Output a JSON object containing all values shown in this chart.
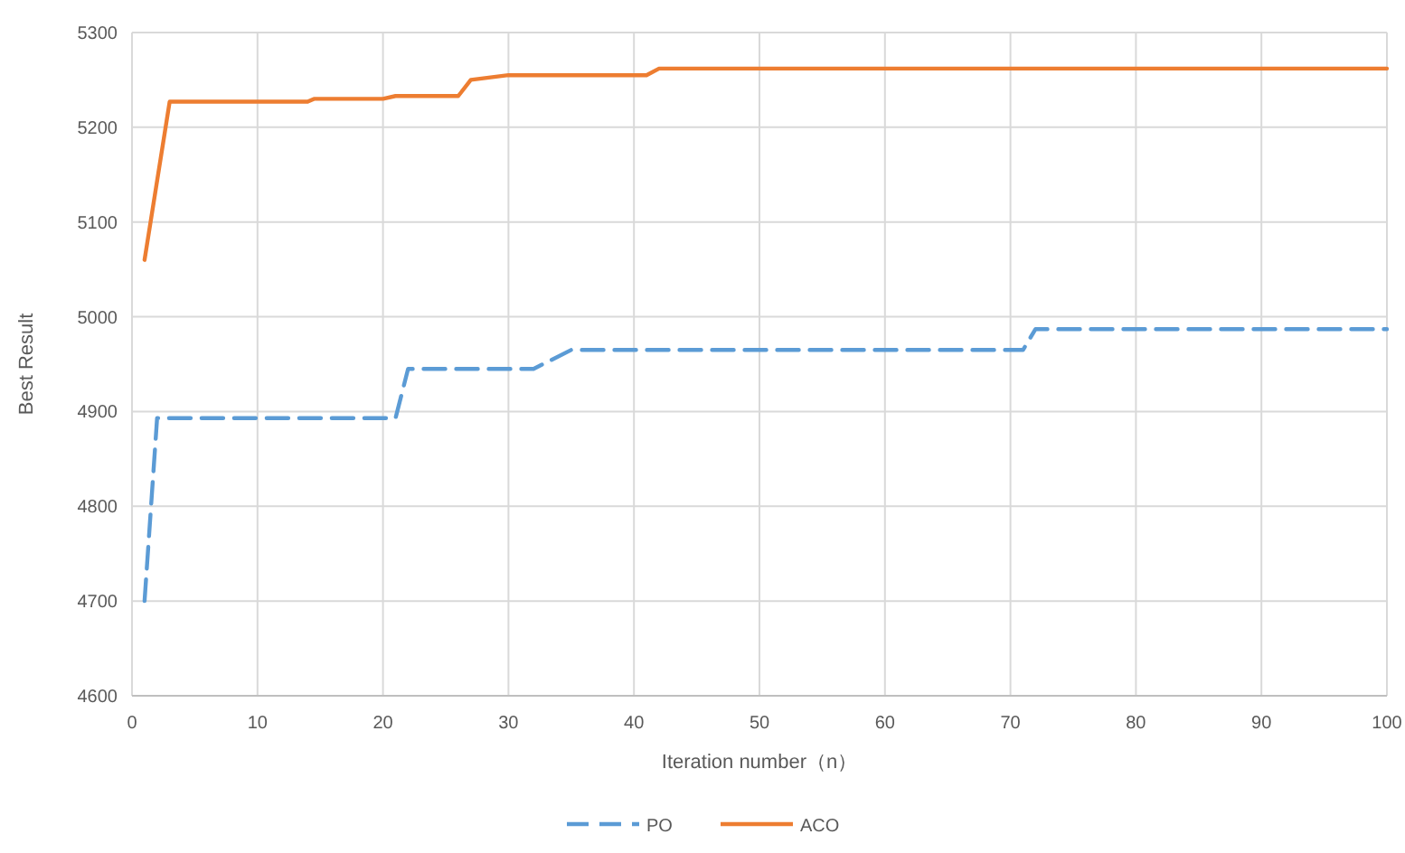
{
  "chart_data": {
    "type": "line",
    "xlabel": "Iteration number（n）",
    "ylabel": "Best Result",
    "xlim": [
      0,
      100
    ],
    "xticks": [
      0,
      10,
      20,
      30,
      40,
      50,
      60,
      70,
      80,
      90,
      100
    ],
    "ylim": [
      4600,
      5300
    ],
    "yticks": [
      4600,
      4700,
      4800,
      4900,
      5000,
      5100,
      5200,
      5300
    ],
    "grid": true,
    "legend": "bottom",
    "series": [
      {
        "name": "PO",
        "color": "#5b9bd5",
        "line_style": "dashed",
        "x": [
          1,
          2,
          21,
          22,
          32,
          35,
          71,
          72,
          100
        ],
        "values": [
          4700,
          4893,
          4893,
          4945,
          4945,
          4965,
          4965,
          4987,
          4987
        ]
      },
      {
        "name": "ACO",
        "color": "#ed7d31",
        "line_style": "solid",
        "x": [
          1,
          3,
          14,
          14.5,
          20,
          21,
          26,
          27,
          30,
          41,
          42,
          100
        ],
        "values": [
          5060,
          5227,
          5227,
          5230,
          5230,
          5233,
          5233,
          5250,
          5255,
          5255,
          5262,
          5262
        ]
      }
    ]
  }
}
